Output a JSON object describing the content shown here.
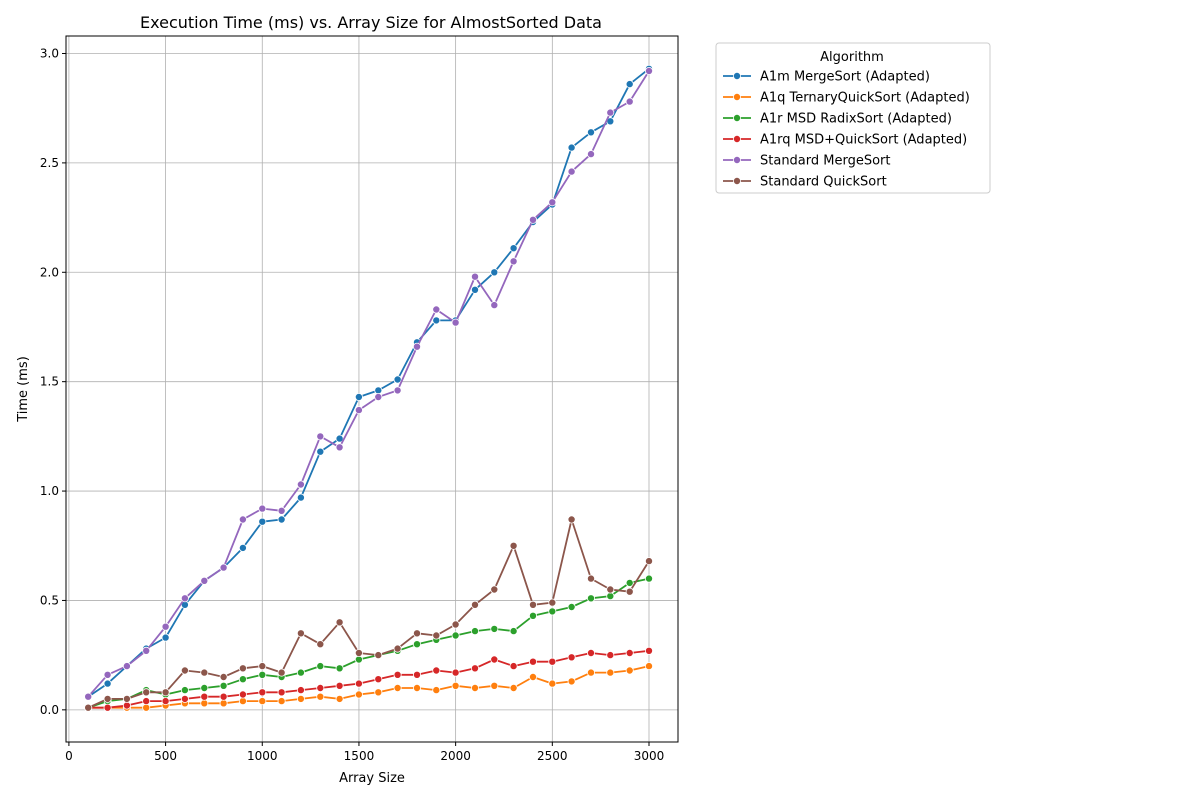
{
  "chart_data": {
    "type": "line",
    "title": "Execution Time (ms) vs. Array Size for AlmostSorted Data",
    "xlabel": "Array Size",
    "ylabel": "Time (ms)",
    "xlim": [
      -15,
      3150
    ],
    "ylim": [
      -0.147,
      3.08
    ],
    "xticks": [
      0,
      500,
      1000,
      1500,
      2000,
      2500,
      3000
    ],
    "yticks": [
      0.0,
      0.5,
      1.0,
      1.5,
      2.0,
      2.5,
      3.0
    ],
    "xtick_labels": [
      "0",
      "500",
      "1000",
      "1500",
      "2000",
      "2500",
      "3000"
    ],
    "ytick_labels": [
      "0.0",
      "0.5",
      "1.0",
      "1.5",
      "2.0",
      "2.5",
      "3.0"
    ],
    "grid": true,
    "legend_title": "Algorithm",
    "legend_position": "outside upper-right",
    "x": [
      100,
      200,
      300,
      400,
      500,
      600,
      700,
      800,
      900,
      1000,
      1100,
      1200,
      1300,
      1400,
      1500,
      1600,
      1700,
      1800,
      1900,
      2000,
      2100,
      2200,
      2300,
      2400,
      2500,
      2600,
      2700,
      2800,
      2900,
      3000
    ],
    "series": [
      {
        "name": "A1m MergeSort (Adapted)",
        "color": "#1f77b4",
        "values": [
          0.06,
          0.12,
          0.2,
          0.28,
          0.33,
          0.48,
          0.59,
          0.65,
          0.74,
          0.86,
          0.87,
          0.97,
          1.18,
          1.24,
          1.43,
          1.46,
          1.51,
          1.68,
          1.78,
          1.78,
          1.92,
          2.0,
          2.11,
          2.23,
          2.31,
          2.57,
          2.64,
          2.69,
          2.86,
          2.93
        ]
      },
      {
        "name": "A1q TernaryQuickSort (Adapted)",
        "color": "#ff7f0e",
        "values": [
          0.01,
          0.01,
          0.01,
          0.01,
          0.02,
          0.03,
          0.03,
          0.03,
          0.04,
          0.04,
          0.04,
          0.05,
          0.06,
          0.05,
          0.07,
          0.08,
          0.1,
          0.1,
          0.09,
          0.11,
          0.1,
          0.11,
          0.1,
          0.15,
          0.12,
          0.13,
          0.17,
          0.17,
          0.18,
          0.2
        ]
      },
      {
        "name": "A1r MSD RadixSort (Adapted)",
        "color": "#2ca02c",
        "values": [
          0.01,
          0.04,
          0.05,
          0.09,
          0.07,
          0.09,
          0.1,
          0.11,
          0.14,
          0.16,
          0.15,
          0.17,
          0.2,
          0.19,
          0.23,
          0.25,
          0.27,
          0.3,
          0.32,
          0.34,
          0.36,
          0.37,
          0.36,
          0.43,
          0.45,
          0.47,
          0.51,
          0.52,
          0.58,
          0.6
        ]
      },
      {
        "name": "A1rq MSD+QuickSort (Adapted)",
        "color": "#d62728",
        "values": [
          0.01,
          0.01,
          0.02,
          0.04,
          0.04,
          0.05,
          0.06,
          0.06,
          0.07,
          0.08,
          0.08,
          0.09,
          0.1,
          0.11,
          0.12,
          0.14,
          0.16,
          0.16,
          0.18,
          0.17,
          0.19,
          0.23,
          0.2,
          0.22,
          0.22,
          0.24,
          0.26,
          0.25,
          0.26,
          0.27
        ]
      },
      {
        "name": "Standard MergeSort",
        "color": "#9467bd",
        "values": [
          0.06,
          0.16,
          0.2,
          0.27,
          0.38,
          0.51,
          0.59,
          0.65,
          0.87,
          0.92,
          0.91,
          1.03,
          1.25,
          1.2,
          1.37,
          1.43,
          1.46,
          1.66,
          1.83,
          1.77,
          1.98,
          1.85,
          2.05,
          2.24,
          2.32,
          2.46,
          2.54,
          2.73,
          2.78,
          2.92
        ]
      },
      {
        "name": "Standard QuickSort",
        "color": "#8c564b",
        "values": [
          0.01,
          0.05,
          0.05,
          0.08,
          0.08,
          0.18,
          0.17,
          0.15,
          0.19,
          0.2,
          0.17,
          0.35,
          0.3,
          0.4,
          0.26,
          0.25,
          0.28,
          0.35,
          0.34,
          0.39,
          0.48,
          0.55,
          0.75,
          0.48,
          0.49,
          0.87,
          0.6,
          0.55,
          0.54,
          0.68
        ]
      }
    ]
  }
}
